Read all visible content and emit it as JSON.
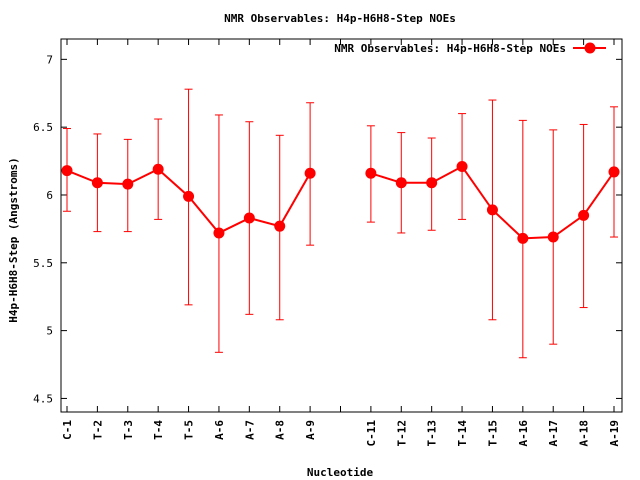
{
  "chart_data": {
    "type": "line",
    "title": "NMR Observables: H4p-H6H8-Step NOEs",
    "xlabel": "Nucleotide",
    "ylabel": "H4p-H6H8-Step (Angstroms)",
    "ylim": [
      4.4,
      7.15
    ],
    "yticks": [
      "4.5",
      "5",
      "5.5",
      "6",
      "6.5",
      "7"
    ],
    "grid": false,
    "legend_position": "top-right",
    "categories": [
      "C-1",
      "T-2",
      "T-3",
      "T-4",
      "T-5",
      "A-6",
      "A-7",
      "A-8",
      "A-9",
      "",
      "C-11",
      "T-12",
      "T-13",
      "T-14",
      "T-15",
      "A-16",
      "A-17",
      "A-18",
      "A-19"
    ],
    "series": [
      {
        "name": "NMR Observables: H4p-H6H8-Step NOEs",
        "color": "#ff0000",
        "values": [
          6.18,
          6.09,
          6.08,
          6.19,
          5.99,
          5.72,
          5.83,
          5.77,
          6.16,
          null,
          6.16,
          6.09,
          6.09,
          6.21,
          5.89,
          5.68,
          5.69,
          5.85,
          6.17
        ],
        "err_low": [
          5.88,
          5.73,
          5.73,
          5.82,
          5.19,
          4.84,
          5.12,
          5.08,
          5.63,
          null,
          5.8,
          5.72,
          5.74,
          5.82,
          5.08,
          4.8,
          4.9,
          5.17,
          5.69
        ],
        "err_high": [
          6.49,
          6.45,
          6.41,
          6.56,
          6.78,
          6.59,
          6.54,
          6.44,
          6.68,
          null,
          6.51,
          6.46,
          6.42,
          6.6,
          6.7,
          6.55,
          6.48,
          6.52,
          6.65
        ]
      }
    ]
  }
}
